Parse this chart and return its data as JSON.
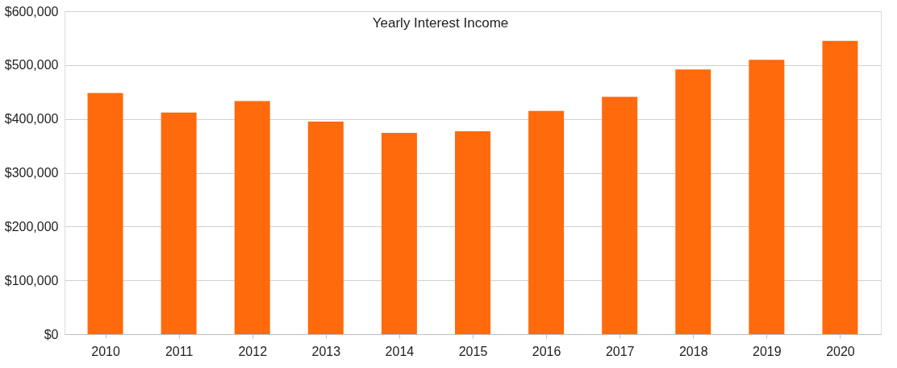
{
  "chart_data": {
    "type": "bar",
    "title": "Yearly Interest Income",
    "categories": [
      "2010",
      "2011",
      "2012",
      "2013",
      "2014",
      "2015",
      "2016",
      "2017",
      "2018",
      "2019",
      "2020"
    ],
    "values": [
      448000,
      412000,
      433000,
      395000,
      374000,
      377000,
      415000,
      441000,
      492000,
      510000,
      545000
    ],
    "color": "#ff6a0d",
    "ylim": [
      0,
      600000
    ],
    "yticks": [
      {
        "value": 0,
        "label": "$0"
      },
      {
        "value": 100000,
        "label": "$100,000"
      },
      {
        "value": 200000,
        "label": "$200,000"
      },
      {
        "value": 300000,
        "label": "$300,000"
      },
      {
        "value": 400000,
        "label": "$400,000"
      },
      {
        "value": 500000,
        "label": "$500,000"
      },
      {
        "value": 600000,
        "label": "$600,000"
      }
    ],
    "grid": "y"
  }
}
